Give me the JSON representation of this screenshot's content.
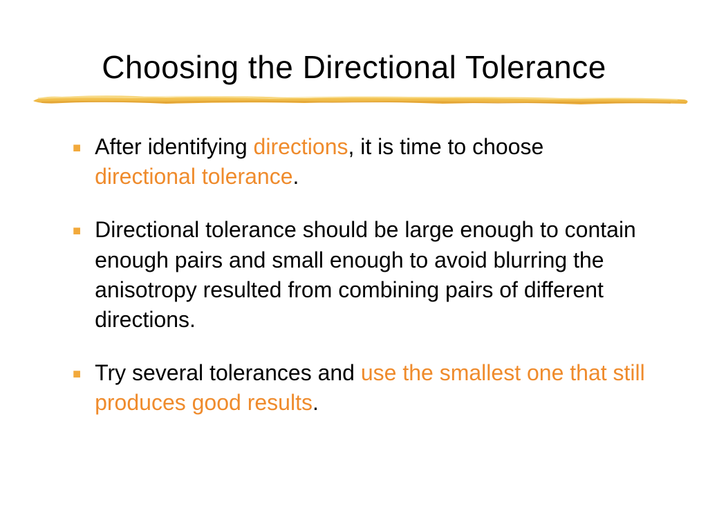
{
  "title": "Choosing the Directional Tolerance",
  "bullets": [
    {
      "segments": [
        {
          "text": "After identifying ",
          "highlight": false
        },
        {
          "text": "directions",
          "highlight": true
        },
        {
          "text": ", it is time to choose ",
          "highlight": false
        },
        {
          "text": "directional tolerance",
          "highlight": true
        },
        {
          "text": ".",
          "highlight": false
        }
      ]
    },
    {
      "segments": [
        {
          "text": "Directional tolerance should be large enough to contain enough pairs and small enough to avoid blurring the anisotropy resulted from combining pairs of different directions.",
          "highlight": false
        }
      ]
    },
    {
      "segments": [
        {
          "text": "Try several tolerances and ",
          "highlight": false
        },
        {
          "text": "use the smallest one that still produces good results",
          "highlight": true
        },
        {
          "text": ".",
          "highlight": false
        }
      ]
    }
  ],
  "colors": {
    "highlight": "#ef8b2c",
    "bullet_marker": "#f2a93b",
    "text": "#000000",
    "background": "#ffffff",
    "brush_dark": "#e8a838",
    "brush_light": "#f7d77a"
  }
}
